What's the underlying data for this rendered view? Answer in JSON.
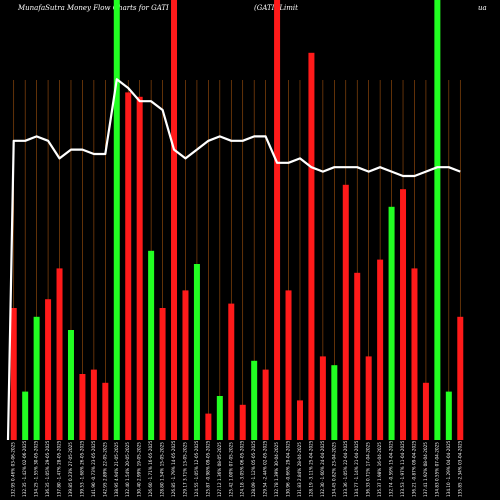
{
  "header": {
    "site": "MunafaSutra  Money Flow  Charts for GATI",
    "company": "(GATI)  Limit",
    "right": "ua"
  },
  "colors": {
    "background": "#000000",
    "gridline": "#a0520f",
    "up": "#22ff22",
    "down": "#ff1a1a",
    "line": "#ffffff",
    "text": "#ffffff"
  },
  "chart_data": {
    "type": "bar",
    "grid": "vertical",
    "ylim": [
      0,
      100
    ],
    "line_ylim": [
      0,
      100
    ],
    "categories": [
      "132.95 0.46% 03-06-2025",
      "132.35 -1.42% 02-06-2025",
      "134.25 -1.55% 30-05-2025",
      "136.35 -1.05% 29-05-2025",
      "137.80 -1.47% 28-05-2025",
      "139.85 0.23% 27-05-2025",
      "139.53 -1.68% 26-05-2025",
      "141.90 -0.73% 23-05-2025",
      "142.95 2.89% 22-05-2025",
      "138.95 4.94% 21-05-2025",
      "132.40 1.54% 20-05-2025",
      "130.40 2.99% 19-05-2025",
      "126.60 -1.71% 16-05-2025",
      "128.80 1.54% 15-05-2025",
      "126.85 -1.79% 14-05-2025",
      "129.17 3.71% 13-05-2025",
      "124.55 -1.05% 12-05-2025",
      "125.87 -0.98% 09-05-2025",
      "127.12 1.36% 08-05-2025",
      "125.42 1.00% 07-05-2025",
      "124.18 -3.05% 06-05-2025",
      "128.09 -1.12% 05-05-2025",
      "129.54 -2.44% 02-05-2025",
      "132.78 1.39% 30-04-2025",
      "130.96 -0.66% 29-04-2025",
      "131.83 2.84% 28-04-2025",
      "128.19 -3.11% 25-04-2025",
      "132.30 -1.60% 24-04-2025",
      "134.45 0.82% 23-04-2025",
      "133.36 -1.05% 22-04-2025",
      "134.77 -1.14% 21-04-2025",
      "136.33 0.71% 17-04-2025",
      "135.37 1.98% 16-04-2025",
      "132.74 -0.59% 15-04-2025",
      "133.53 -1.97% 11-04-2025",
      "136.21 -0.87% 09-04-2025",
      "137.41 1.92% 08-04-2025",
      "134.83 0.55% 07-04-2025",
      "134.10 -1.29% 04-04-2025",
      "135.85 -2.34% 03-04-2025"
    ],
    "bar_heights": [
      30,
      11,
      28,
      32,
      39,
      25,
      15,
      16,
      13,
      100,
      79,
      78,
      43,
      30,
      100,
      34,
      40,
      6,
      10,
      31,
      8,
      18,
      16,
      100,
      34,
      9,
      88,
      19,
      17,
      58,
      38,
      19,
      41,
      53,
      57,
      39,
      13,
      100,
      11,
      28
    ],
    "bar_direction": [
      "down",
      "up",
      "up",
      "down",
      "down",
      "up",
      "down",
      "down",
      "down",
      "up",
      "down",
      "down",
      "up",
      "down",
      "down",
      "down",
      "up",
      "down",
      "up",
      "down",
      "down",
      "up",
      "down",
      "down",
      "down",
      "down",
      "down",
      "down",
      "up",
      "down",
      "down",
      "down",
      "down",
      "up",
      "down",
      "down",
      "down",
      "up",
      "up",
      "down"
    ],
    "line_values": [
      68,
      68,
      69,
      68,
      64,
      66,
      66,
      65,
      65,
      82,
      80,
      77,
      77,
      75,
      66,
      64,
      66,
      68,
      69,
      68,
      68,
      69,
      69,
      63,
      63,
      64,
      62,
      61,
      62,
      62,
      62,
      61,
      62,
      61,
      60,
      60,
      61,
      62,
      62,
      61
    ]
  }
}
